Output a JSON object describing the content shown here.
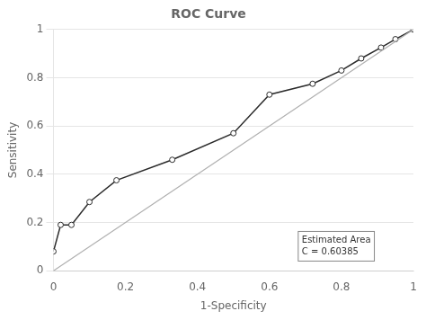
{
  "chart_data": {
    "type": "line",
    "title": "ROC Curve",
    "xlabel": "1-Specificity",
    "ylabel": "Sensitivity",
    "series": [
      {
        "x": [
          0.0,
          1.0
        ],
        "values": [
          0.0,
          1.0
        ],
        "color": "#b0b0b0"
      },
      {
        "x": [
          0.0,
          0.02,
          0.05,
          0.1,
          0.175,
          0.33,
          0.5,
          0.6,
          0.72,
          0.8,
          0.855,
          0.91,
          0.95,
          1.0
        ],
        "values": [
          0.08,
          0.19,
          0.19,
          0.285,
          0.375,
          0.46,
          0.57,
          0.73,
          0.775,
          0.83,
          0.88,
          0.925,
          0.96,
          1.0
        ],
        "color": "#2b2b2b",
        "marker": "o"
      }
    ],
    "annotation": "Estimated Area\nC = 0.60385",
    "xlim": [
      0.0,
      1.0
    ],
    "ylim": [
      0.0,
      1.0
    ],
    "xticks": [
      0,
      0.2,
      0.4,
      0.6,
      0.8,
      1
    ],
    "yticks": [
      0,
      0.2,
      0.4,
      0.6,
      0.8,
      1
    ],
    "grid": "y"
  }
}
